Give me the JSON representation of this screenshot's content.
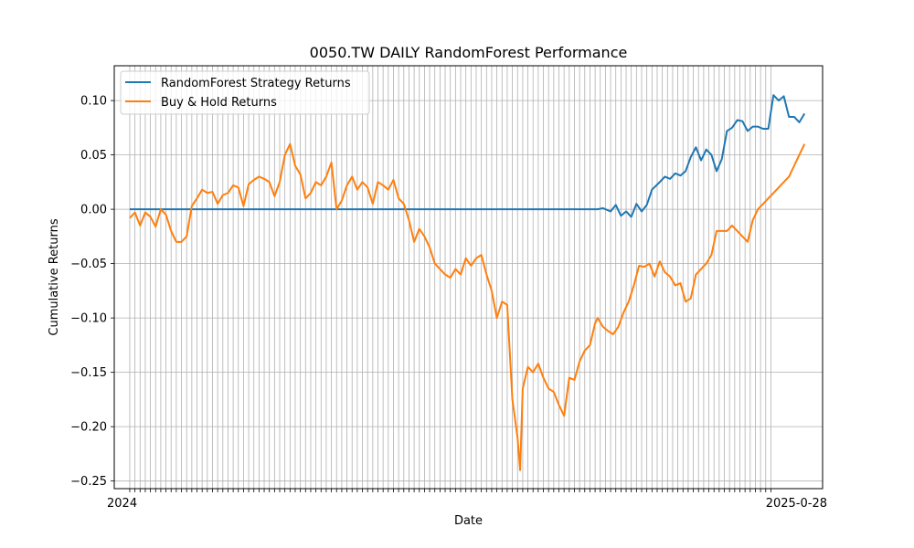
{
  "chart_data": {
    "type": "line",
    "title": "0050.TW DAILY RandomForest Performance",
    "xlabel": "Date",
    "ylabel": "Cumulative Returns",
    "ylim": [
      -0.257,
      0.132
    ],
    "y_ticks": [
      -0.25,
      -0.2,
      -0.15,
      -0.1,
      -0.05,
      0.0,
      0.05,
      0.1
    ],
    "y_tick_labels": [
      "−0.25",
      "−0.20",
      "−0.15",
      "−0.10",
      "−0.05",
      "0.00",
      "0.05",
      "0.10"
    ],
    "x_tick_labels_visible": {
      "first": "2024",
      "last": "2025-0-28"
    },
    "n_points": 249,
    "grid": true,
    "legend_position": "top-left",
    "colors": {
      "strategy": "#1f77b4",
      "buyhold": "#ff7f0e",
      "grid": "#b0b0b0"
    },
    "series": [
      {
        "name": "RandomForest Strategy Returns",
        "color": "#1f77b4",
        "keypoints": [
          [
            0,
            0
          ],
          [
            181,
            0
          ],
          [
            183,
            0.001
          ],
          [
            186,
            -0.002
          ],
          [
            188,
            0.004
          ],
          [
            190,
            -0.006
          ],
          [
            192,
            -0.002
          ],
          [
            194,
            -0.007
          ],
          [
            196,
            0.005
          ],
          [
            198,
            -0.002
          ],
          [
            200,
            0.004
          ],
          [
            202,
            0.018
          ],
          [
            205,
            0.025
          ],
          [
            207,
            0.03
          ],
          [
            209,
            0.028
          ],
          [
            211,
            0.033
          ],
          [
            213,
            0.031
          ],
          [
            215,
            0.035
          ],
          [
            217,
            0.048
          ],
          [
            219,
            0.057
          ],
          [
            221,
            0.045
          ],
          [
            223,
            0.055
          ],
          [
            225,
            0.05
          ],
          [
            227,
            0.035
          ],
          [
            229,
            0.046
          ],
          [
            231,
            0.072
          ],
          [
            233,
            0.075
          ],
          [
            235,
            0.082
          ],
          [
            237,
            0.081
          ],
          [
            239,
            0.072
          ],
          [
            241,
            0.076
          ],
          [
            243,
            0.076
          ],
          [
            245,
            0.074
          ],
          [
            247,
            0.074
          ],
          [
            249,
            0.105
          ],
          [
            251,
            0.1
          ],
          [
            253,
            0.104
          ],
          [
            255,
            0.085
          ],
          [
            257,
            0.085
          ],
          [
            259,
            0.08
          ],
          [
            261,
            0.088
          ]
        ]
      },
      {
        "name": "Buy & Hold Returns",
        "color": "#ff7f0e",
        "keypoints": [
          [
            0,
            -0.008
          ],
          [
            2,
            -0.003
          ],
          [
            4,
            -0.015
          ],
          [
            6,
            -0.003
          ],
          [
            8,
            -0.007
          ],
          [
            10,
            -0.016
          ],
          [
            12,
            0.0
          ],
          [
            14,
            -0.005
          ],
          [
            16,
            -0.02
          ],
          [
            18,
            -0.03
          ],
          [
            20,
            -0.03
          ],
          [
            22,
            -0.025
          ],
          [
            24,
            0.003
          ],
          [
            26,
            0.01
          ],
          [
            28,
            0.018
          ],
          [
            30,
            0.015
          ],
          [
            32,
            0.016
          ],
          [
            34,
            0.005
          ],
          [
            36,
            0.013
          ],
          [
            38,
            0.015
          ],
          [
            40,
            0.022
          ],
          [
            42,
            0.02
          ],
          [
            44,
            0.003
          ],
          [
            46,
            0.023
          ],
          [
            48,
            0.027
          ],
          [
            50,
            0.03
          ],
          [
            52,
            0.028
          ],
          [
            54,
            0.025
          ],
          [
            56,
            0.012
          ],
          [
            58,
            0.025
          ],
          [
            60,
            0.05
          ],
          [
            62,
            0.06
          ],
          [
            64,
            0.04
          ],
          [
            66,
            0.032
          ],
          [
            68,
            0.01
          ],
          [
            70,
            0.015
          ],
          [
            72,
            0.025
          ],
          [
            74,
            0.022
          ],
          [
            76,
            0.03
          ],
          [
            78,
            0.043
          ],
          [
            80,
            0.0
          ],
          [
            82,
            0.008
          ],
          [
            84,
            0.022
          ],
          [
            86,
            0.03
          ],
          [
            88,
            0.018
          ],
          [
            90,
            0.025
          ],
          [
            92,
            0.02
          ],
          [
            94,
            0.005
          ],
          [
            96,
            0.025
          ],
          [
            98,
            0.022
          ],
          [
            100,
            0.018
          ],
          [
            102,
            0.027
          ],
          [
            104,
            0.01
          ],
          [
            106,
            0.005
          ],
          [
            108,
            -0.01
          ],
          [
            110,
            -0.03
          ],
          [
            112,
            -0.018
          ],
          [
            114,
            -0.025
          ],
          [
            116,
            -0.035
          ],
          [
            118,
            -0.05
          ],
          [
            120,
            -0.055
          ],
          [
            122,
            -0.06
          ],
          [
            124,
            -0.063
          ],
          [
            126,
            -0.055
          ],
          [
            128,
            -0.06
          ],
          [
            130,
            -0.045
          ],
          [
            132,
            -0.052
          ],
          [
            134,
            -0.045
          ],
          [
            136,
            -0.042
          ],
          [
            138,
            -0.06
          ],
          [
            140,
            -0.075
          ],
          [
            142,
            -0.1
          ],
          [
            144,
            -0.085
          ],
          [
            146,
            -0.088
          ],
          [
            148,
            -0.175
          ],
          [
            150,
            -0.21
          ],
          [
            151,
            -0.24
          ],
          [
            152,
            -0.165
          ],
          [
            154,
            -0.145
          ],
          [
            156,
            -0.15
          ],
          [
            158,
            -0.142
          ],
          [
            160,
            -0.155
          ],
          [
            162,
            -0.165
          ],
          [
            164,
            -0.168
          ],
          [
            166,
            -0.18
          ],
          [
            168,
            -0.19
          ],
          [
            170,
            -0.155
          ],
          [
            172,
            -0.157
          ],
          [
            174,
            -0.14
          ],
          [
            176,
            -0.13
          ],
          [
            178,
            -0.125
          ],
          [
            180,
            -0.105
          ],
          [
            181,
            -0.1
          ],
          [
            183,
            -0.108
          ],
          [
            185,
            -0.112
          ],
          [
            187,
            -0.115
          ],
          [
            189,
            -0.108
          ],
          [
            191,
            -0.095
          ],
          [
            193,
            -0.085
          ],
          [
            195,
            -0.07
          ],
          [
            197,
            -0.052
          ],
          [
            199,
            -0.053
          ],
          [
            201,
            -0.05
          ],
          [
            203,
            -0.062
          ],
          [
            205,
            -0.048
          ],
          [
            207,
            -0.058
          ],
          [
            209,
            -0.062
          ],
          [
            211,
            -0.07
          ],
          [
            213,
            -0.068
          ],
          [
            215,
            -0.085
          ],
          [
            217,
            -0.082
          ],
          [
            219,
            -0.06
          ],
          [
            221,
            -0.055
          ],
          [
            223,
            -0.05
          ],
          [
            225,
            -0.042
          ],
          [
            227,
            -0.02
          ],
          [
            229,
            -0.02
          ],
          [
            231,
            -0.02
          ],
          [
            233,
            -0.015
          ],
          [
            235,
            -0.02
          ],
          [
            237,
            -0.025
          ],
          [
            239,
            -0.03
          ],
          [
            241,
            -0.01
          ],
          [
            243,
            0.0
          ],
          [
            245,
            0.005
          ],
          [
            247,
            0.01
          ],
          [
            249,
            0.015
          ],
          [
            251,
            0.02
          ],
          [
            253,
            0.025
          ],
          [
            255,
            0.03
          ],
          [
            257,
            0.04
          ],
          [
            259,
            0.05
          ],
          [
            261,
            0.06
          ]
        ]
      }
    ]
  }
}
